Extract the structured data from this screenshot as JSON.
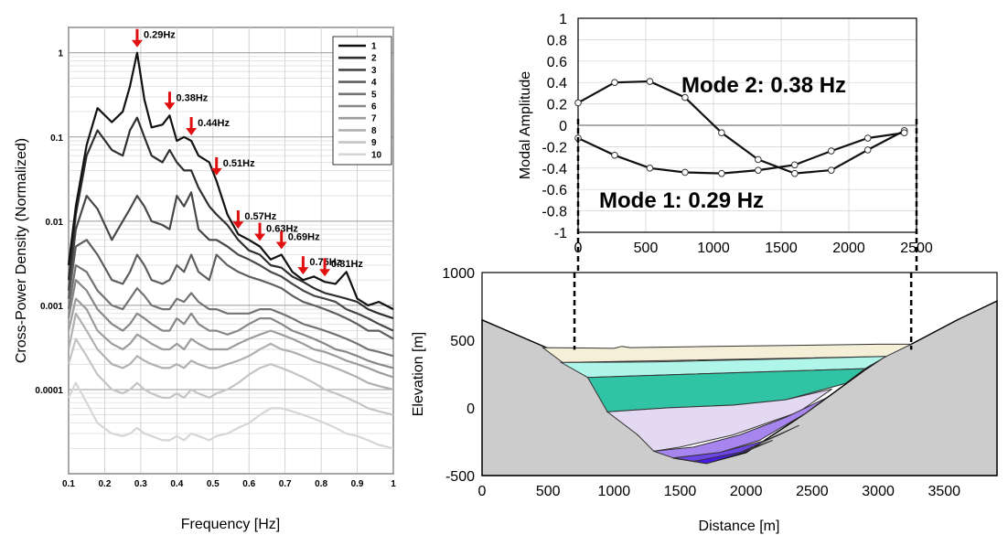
{
  "chart_data": [
    {
      "type": "line",
      "xlabel": "Frequency [Hz]",
      "ylabel": "Cross-Power Density (Normalized)",
      "xlim": [
        0.1,
        1.0
      ],
      "ylim": [
        1e-05,
        2
      ],
      "y_log": true,
      "grid": true,
      "legend_position": "top-right",
      "xticks": [
        "0.1",
        "0.2",
        "0.3",
        "0.4",
        "0.5",
        "0.6",
        "0.7",
        "0.8",
        "0.9",
        "1"
      ],
      "yticks": [
        "0.0001",
        "0.001",
        "0.01",
        "0.1",
        "1"
      ],
      "series_names": [
        "1",
        "2",
        "3",
        "4",
        "5",
        "6",
        "7",
        "8",
        "9",
        "10"
      ],
      "series_colors": [
        "#111111",
        "#2e2e2e",
        "#474747",
        "#5e5e5e",
        "#737373",
        "#888888",
        "#9c9c9c",
        "#b0b0b0",
        "#c4c4c4",
        "#d6d6d6"
      ],
      "peaks": [
        {
          "x": 0.29,
          "label": "0.29Hz"
        },
        {
          "x": 0.38,
          "label": "0.38Hz"
        },
        {
          "x": 0.44,
          "label": "0.44Hz"
        },
        {
          "x": 0.51,
          "label": "0.51Hz"
        },
        {
          "x": 0.57,
          "label": "0.57Hz"
        },
        {
          "x": 0.63,
          "label": "0.63Hz"
        },
        {
          "x": 0.69,
          "label": "0.69Hz"
        },
        {
          "x": 0.75,
          "label": "0.75Hz"
        },
        {
          "x": 0.81,
          "label": "0.81Hz"
        }
      ],
      "series": [
        {
          "name": "1",
          "x": [
            0.1,
            0.12,
            0.15,
            0.18,
            0.22,
            0.25,
            0.27,
            0.29,
            0.31,
            0.33,
            0.36,
            0.38,
            0.4,
            0.42,
            0.44,
            0.46,
            0.49,
            0.51,
            0.54,
            0.57,
            0.6,
            0.63,
            0.66,
            0.69,
            0.72,
            0.75,
            0.78,
            0.81,
            0.84,
            0.87,
            0.9,
            0.93,
            0.96,
            1.0
          ],
          "y": [
            0.003,
            0.015,
            0.08,
            0.22,
            0.15,
            0.2,
            0.4,
            1.0,
            0.28,
            0.13,
            0.14,
            0.18,
            0.09,
            0.1,
            0.09,
            0.06,
            0.05,
            0.03,
            0.012,
            0.007,
            0.006,
            0.005,
            0.0035,
            0.004,
            0.0025,
            0.002,
            0.0022,
            0.0019,
            0.0018,
            0.0025,
            0.0012,
            0.001,
            0.0011,
            0.0009
          ]
        },
        {
          "name": "2",
          "x": [
            0.1,
            0.12,
            0.15,
            0.18,
            0.22,
            0.25,
            0.27,
            0.29,
            0.31,
            0.33,
            0.36,
            0.38,
            0.4,
            0.42,
            0.44,
            0.46,
            0.49,
            0.51,
            0.54,
            0.57,
            0.6,
            0.63,
            0.66,
            0.69,
            0.72,
            0.75,
            0.78,
            0.81,
            0.84,
            0.87,
            0.9,
            0.93,
            0.96,
            1.0
          ],
          "y": [
            0.002,
            0.012,
            0.06,
            0.12,
            0.07,
            0.06,
            0.12,
            0.17,
            0.1,
            0.06,
            0.05,
            0.07,
            0.05,
            0.04,
            0.04,
            0.025,
            0.015,
            0.012,
            0.009,
            0.006,
            0.0045,
            0.004,
            0.003,
            0.0028,
            0.0022,
            0.0019,
            0.0016,
            0.0014,
            0.0013,
            0.0012,
            0.0011,
            0.0009,
            0.0008,
            0.0007
          ]
        },
        {
          "name": "3",
          "x": [
            0.1,
            0.12,
            0.15,
            0.18,
            0.22,
            0.25,
            0.27,
            0.29,
            0.31,
            0.33,
            0.36,
            0.38,
            0.4,
            0.42,
            0.44,
            0.46,
            0.49,
            0.51,
            0.54,
            0.57,
            0.6,
            0.63,
            0.66,
            0.69,
            0.72,
            0.75,
            0.78,
            0.81,
            0.84,
            0.87,
            0.9,
            0.93,
            0.96,
            1.0
          ],
          "y": [
            0.0015,
            0.008,
            0.02,
            0.014,
            0.006,
            0.01,
            0.014,
            0.02,
            0.015,
            0.01,
            0.009,
            0.008,
            0.02,
            0.015,
            0.022,
            0.008,
            0.006,
            0.006,
            0.005,
            0.004,
            0.0035,
            0.003,
            0.0025,
            0.0022,
            0.0018,
            0.0015,
            0.0013,
            0.0012,
            0.0011,
            0.0009,
            0.0008,
            0.0007,
            0.0006,
            0.0005
          ]
        },
        {
          "name": "4",
          "x": [
            0.1,
            0.12,
            0.15,
            0.18,
            0.22,
            0.25,
            0.27,
            0.29,
            0.31,
            0.33,
            0.36,
            0.38,
            0.4,
            0.42,
            0.44,
            0.46,
            0.49,
            0.51,
            0.54,
            0.57,
            0.6,
            0.63,
            0.66,
            0.69,
            0.72,
            0.75,
            0.78,
            0.81,
            0.84,
            0.87,
            0.9,
            0.93,
            0.96,
            1.0
          ],
          "y": [
            0.0012,
            0.005,
            0.006,
            0.004,
            0.002,
            0.0018,
            0.0025,
            0.004,
            0.003,
            0.002,
            0.0018,
            0.002,
            0.003,
            0.0025,
            0.004,
            0.0025,
            0.002,
            0.004,
            0.003,
            0.0025,
            0.0022,
            0.002,
            0.0018,
            0.0016,
            0.0013,
            0.0011,
            0.001,
            0.0009,
            0.0008,
            0.0007,
            0.0006,
            0.0005,
            0.0005,
            0.0004
          ]
        },
        {
          "name": "5",
          "x": [
            0.1,
            0.12,
            0.15,
            0.18,
            0.22,
            0.25,
            0.27,
            0.29,
            0.31,
            0.33,
            0.36,
            0.38,
            0.4,
            0.42,
            0.44,
            0.46,
            0.49,
            0.51,
            0.54,
            0.57,
            0.6,
            0.63,
            0.66,
            0.69,
            0.72,
            0.75,
            0.78,
            0.81,
            0.84,
            0.87,
            0.9,
            0.93,
            0.96,
            1.0
          ],
          "y": [
            0.0009,
            0.003,
            0.0025,
            0.0015,
            0.001,
            0.0009,
            0.0012,
            0.0016,
            0.0013,
            0.001,
            0.0009,
            0.0009,
            0.0012,
            0.0011,
            0.0014,
            0.0011,
            0.0009,
            0.0009,
            0.0008,
            0.0008,
            0.0008,
            0.0009,
            0.0009,
            0.0008,
            0.0007,
            0.0006,
            0.00055,
            0.0005,
            0.00045,
            0.0004,
            0.00035,
            0.0003,
            0.00028,
            0.00025
          ]
        },
        {
          "name": "6",
          "x": [
            0.1,
            0.12,
            0.15,
            0.18,
            0.22,
            0.25,
            0.27,
            0.29,
            0.31,
            0.33,
            0.36,
            0.38,
            0.4,
            0.42,
            0.44,
            0.46,
            0.49,
            0.51,
            0.54,
            0.57,
            0.6,
            0.63,
            0.66,
            0.69,
            0.72,
            0.75,
            0.78,
            0.81,
            0.84,
            0.87,
            0.9,
            0.93,
            0.96,
            1.0
          ],
          "y": [
            0.0007,
            0.002,
            0.0015,
            0.0009,
            0.0006,
            0.0005,
            0.0006,
            0.0008,
            0.0007,
            0.0006,
            0.0005,
            0.0005,
            0.0007,
            0.0006,
            0.0008,
            0.0006,
            0.0005,
            0.0005,
            0.00045,
            0.0005,
            0.0006,
            0.0007,
            0.0007,
            0.0006,
            0.0005,
            0.00045,
            0.0004,
            0.00035,
            0.0003,
            0.00028,
            0.00025,
            0.00022,
            0.0002,
            0.00018
          ]
        },
        {
          "name": "7",
          "x": [
            0.1,
            0.12,
            0.15,
            0.18,
            0.22,
            0.25,
            0.27,
            0.29,
            0.31,
            0.33,
            0.36,
            0.38,
            0.4,
            0.42,
            0.44,
            0.46,
            0.49,
            0.51,
            0.54,
            0.57,
            0.6,
            0.63,
            0.66,
            0.69,
            0.72,
            0.75,
            0.78,
            0.81,
            0.84,
            0.87,
            0.9,
            0.93,
            0.96,
            1.0
          ],
          "y": [
            0.0005,
            0.0012,
            0.0009,
            0.0005,
            0.00035,
            0.0003,
            0.00035,
            0.00045,
            0.0004,
            0.00035,
            0.0003,
            0.0003,
            0.00035,
            0.0003,
            0.0004,
            0.00035,
            0.0003,
            0.0003,
            0.0003,
            0.00035,
            0.0004,
            0.00045,
            0.0005,
            0.00045,
            0.0004,
            0.00035,
            0.0003,
            0.00028,
            0.00025,
            0.00022,
            0.0002,
            0.00018,
            0.00016,
            0.00014
          ]
        },
        {
          "name": "8",
          "x": [
            0.1,
            0.12,
            0.15,
            0.18,
            0.22,
            0.25,
            0.27,
            0.29,
            0.31,
            0.33,
            0.36,
            0.38,
            0.4,
            0.42,
            0.44,
            0.46,
            0.49,
            0.51,
            0.54,
            0.57,
            0.6,
            0.63,
            0.66,
            0.69,
            0.72,
            0.75,
            0.78,
            0.81,
            0.84,
            0.87,
            0.9,
            0.93,
            0.96,
            1.0
          ],
          "y": [
            0.0003,
            0.0008,
            0.0005,
            0.0003,
            0.0002,
            0.00018,
            0.0002,
            0.00025,
            0.00022,
            0.0002,
            0.00018,
            0.00018,
            0.0002,
            0.00018,
            0.00022,
            0.0002,
            0.00018,
            0.00018,
            0.0002,
            0.00022,
            0.00025,
            0.0003,
            0.00035,
            0.0003,
            0.00028,
            0.00025,
            0.00022,
            0.0002,
            0.00018,
            0.00016,
            0.00014,
            0.00012,
            0.00011,
            0.0001
          ]
        },
        {
          "name": "9",
          "x": [
            0.1,
            0.12,
            0.15,
            0.18,
            0.22,
            0.25,
            0.27,
            0.29,
            0.31,
            0.33,
            0.36,
            0.38,
            0.4,
            0.42,
            0.44,
            0.46,
            0.49,
            0.51,
            0.54,
            0.57,
            0.6,
            0.63,
            0.66,
            0.69,
            0.72,
            0.75,
            0.78,
            0.81,
            0.84,
            0.87,
            0.9,
            0.93,
            0.96,
            1.0
          ],
          "y": [
            0.0002,
            0.0004,
            0.00025,
            0.00015,
            0.0001,
            9e-05,
            0.0001,
            0.00012,
            0.0001,
            9e-05,
            8e-05,
            8e-05,
            9e-05,
            8e-05,
            0.0001,
            9e-05,
            8e-05,
            9e-05,
            0.0001,
            0.00012,
            0.00015,
            0.00018,
            0.0002,
            0.00018,
            0.00016,
            0.00014,
            0.00012,
            0.0001,
            9e-05,
            8e-05,
            7e-05,
            6e-05,
            5.5e-05,
            5e-05
          ]
        },
        {
          "name": "10",
          "x": [
            0.1,
            0.12,
            0.15,
            0.18,
            0.22,
            0.25,
            0.27,
            0.29,
            0.31,
            0.33,
            0.36,
            0.38,
            0.4,
            0.42,
            0.44,
            0.46,
            0.49,
            0.51,
            0.54,
            0.57,
            0.6,
            0.63,
            0.66,
            0.69,
            0.72,
            0.75,
            0.78,
            0.81,
            0.84,
            0.87,
            0.9,
            0.93,
            0.96,
            1.0
          ],
          "y": [
            8e-05,
            0.00012,
            7e-05,
            4e-05,
            3e-05,
            2.8e-05,
            3e-05,
            3.5e-05,
            3e-05,
            2.8e-05,
            2.5e-05,
            2.5e-05,
            2.8e-05,
            2.5e-05,
            3e-05,
            2.8e-05,
            2.5e-05,
            2.8e-05,
            3e-05,
            3.5e-05,
            4e-05,
            5e-05,
            6e-05,
            6e-05,
            5.5e-05,
            5e-05,
            4.5e-05,
            4e-05,
            3.5e-05,
            3e-05,
            2.8e-05,
            2.5e-05,
            2.2e-05,
            2e-05
          ]
        }
      ]
    },
    {
      "type": "line",
      "ylabel": "Modal Amplitude",
      "xlim": [
        0,
        2500
      ],
      "ylim": [
        -1,
        1
      ],
      "grid": true,
      "xticks": [
        "0",
        "500",
        "1000",
        "1500",
        "2000",
        "2500"
      ],
      "yticks": [
        "-1",
        "-0.8",
        "-0.6",
        "-0.4",
        "-0.2",
        "0",
        "0.2",
        "0.4",
        "0.6",
        "0.8",
        "1"
      ],
      "annotations": [
        "Mode 2: 0.38 Hz",
        "Mode 1: 0.29 Hz"
      ],
      "series": [
        {
          "name": "Mode 2: 0.38 Hz",
          "x": [
            0,
            270,
            530,
            790,
            1060,
            1330,
            1600,
            1870,
            2140,
            2410
          ],
          "y": [
            0.21,
            0.4,
            0.41,
            0.26,
            -0.07,
            -0.32,
            -0.45,
            -0.42,
            -0.23,
            -0.05
          ]
        },
        {
          "name": "Mode 1: 0.29 Hz",
          "x": [
            0,
            270,
            530,
            790,
            1060,
            1330,
            1600,
            1870,
            2140,
            2410
          ],
          "y": [
            -0.12,
            -0.28,
            -0.4,
            -0.44,
            -0.45,
            -0.42,
            -0.37,
            -0.24,
            -0.12,
            -0.07
          ]
        }
      ]
    },
    {
      "type": "area",
      "xlabel": "Distance [m]",
      "ylabel": "Elevation [m]",
      "xlim": [
        0,
        3900
      ],
      "ylim": [
        -500,
        1000
      ],
      "xticks": [
        "0",
        "500",
        "1000",
        "1500",
        "2000",
        "2500",
        "3000",
        "3500"
      ],
      "yticks": [
        "-500",
        "0",
        "500",
        "1000"
      ],
      "layer_colors": [
        "#f6efd8",
        "#aff5ea",
        "#31c4a4",
        "#e3d9f3",
        "#a785ee",
        "#6e45e6",
        "#4a19e8"
      ],
      "bedrock_color": "#cccccc",
      "dashed_link_distances": [
        700,
        3250
      ]
    }
  ]
}
